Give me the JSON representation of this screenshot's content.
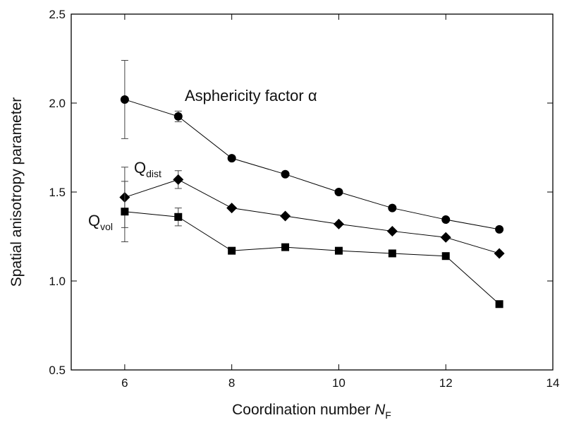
{
  "chart_data": {
    "type": "line",
    "xlabel": "Coordination number",
    "xlabel_symbol": "N",
    "xlabel_subscript": "F",
    "ylabel": "Spatial anisotropy parameter",
    "x": [
      6,
      7,
      8,
      9,
      10,
      11,
      12,
      13
    ],
    "xlim": [
      5,
      14
    ],
    "xticks": [
      6,
      8,
      10,
      12,
      14
    ],
    "ylim": [
      0.5,
      2.5
    ],
    "yticks": [
      0.5,
      {
        "value": 1,
        "label": "1.0"
      },
      1.5,
      {
        "value": 2,
        "label": "2.0"
      },
      2.5
    ],
    "series": [
      {
        "name": "Asphericity factor α",
        "marker": "circle",
        "color": "#000000",
        "values": [
          2.02,
          1.925,
          1.69,
          1.6,
          1.5,
          1.41,
          1.345,
          1.29
        ],
        "errors": [
          0.22,
          0.03,
          null,
          null,
          null,
          null,
          null,
          null
        ]
      },
      {
        "name": "Q",
        "subscript": "dist",
        "marker": "diamond",
        "color": "#000000",
        "values": [
          1.47,
          1.57,
          1.41,
          1.365,
          1.32,
          1.28,
          1.245,
          1.155
        ],
        "errors": [
          0.17,
          0.05,
          null,
          null,
          null,
          null,
          null,
          null
        ]
      },
      {
        "name": "Q",
        "subscript": "vol",
        "marker": "square",
        "color": "#000000",
        "values": [
          1.39,
          1.36,
          1.17,
          1.19,
          1.17,
          1.155,
          1.14,
          0.87
        ],
        "errors": [
          0.17,
          0.05,
          null,
          null,
          null,
          null,
          null,
          null
        ]
      }
    ]
  }
}
